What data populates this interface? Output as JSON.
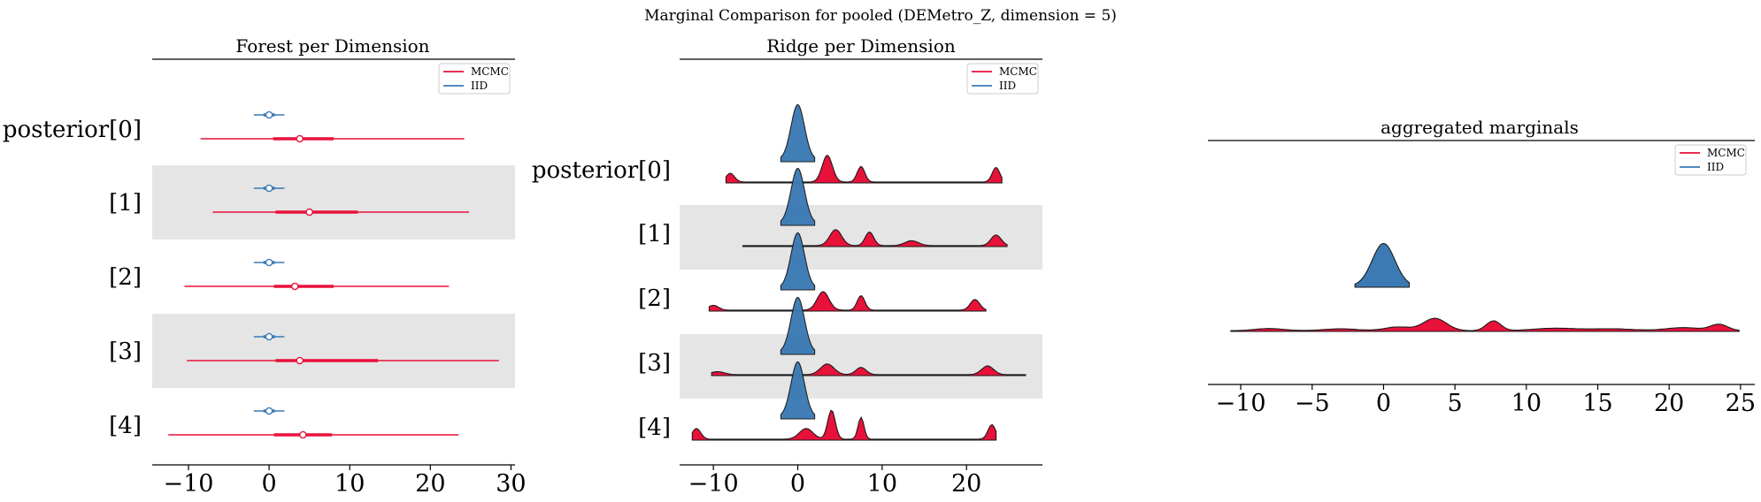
{
  "suptitle": "Marginal Comparison for pooled (DEMetro_Z, dimension = 5)",
  "colors": {
    "mcmc": "#e8113a",
    "mcmc_dark": "#c20a2c",
    "iid": "#3c7ab4",
    "band": "#e5e5e5"
  },
  "legend": [
    "MCMC",
    "IID"
  ],
  "chart_data": [
    {
      "type": "forest",
      "title": "Forest per Dimension",
      "row_labels": [
        "posterior[0]",
        "[1]",
        "[2]",
        "[3]",
        "[4]"
      ],
      "x_ticks": [
        -10,
        0,
        10,
        20,
        30
      ],
      "xlim": [
        -14.5,
        30.5
      ],
      "legend_placement": "top-right",
      "series": [
        {
          "name": "MCMC",
          "rows": [
            {
              "median": 3.8,
              "q25": 0.5,
              "q75": 8.0,
              "low": -8.5,
              "high": 24.2
            },
            {
              "median": 5.0,
              "q25": 0.8,
              "q75": 11.0,
              "low": -7.0,
              "high": 24.8
            },
            {
              "median": 3.2,
              "q25": 0.6,
              "q75": 8.0,
              "low": -10.5,
              "high": 22.3
            },
            {
              "median": 3.8,
              "q25": 0.8,
              "q75": 13.5,
              "low": -10.2,
              "high": 28.5
            },
            {
              "median": 4.2,
              "q25": 0.6,
              "q75": 7.8,
              "low": -12.5,
              "high": 23.5
            }
          ]
        },
        {
          "name": "IID",
          "rows": [
            {
              "median": 0.0,
              "q25": -0.7,
              "q75": 0.7,
              "low": -1.9,
              "high": 1.9
            },
            {
              "median": 0.0,
              "q25": -0.7,
              "q75": 0.7,
              "low": -1.9,
              "high": 1.9
            },
            {
              "median": 0.0,
              "q25": -0.7,
              "q75": 0.7,
              "low": -1.9,
              "high": 1.9
            },
            {
              "median": 0.0,
              "q25": -0.7,
              "q75": 0.7,
              "low": -1.9,
              "high": 1.9
            },
            {
              "median": 0.0,
              "q25": -0.7,
              "q75": 0.7,
              "low": -1.9,
              "high": 1.9
            }
          ]
        }
      ]
    },
    {
      "type": "ridgeline",
      "title": "Ridge per Dimension",
      "row_labels": [
        "posterior[0]",
        "[1]",
        "[2]",
        "[3]",
        "[4]"
      ],
      "x_ticks": [
        -10,
        0,
        10,
        20
      ],
      "xlim": [
        -14,
        29
      ],
      "legend_placement": "top-right",
      "series": [
        {
          "name": "IID",
          "range": [
            -2,
            2
          ],
          "peaks": [
            [
              0,
              1.0,
              0.8
            ]
          ]
        },
        {
          "name": "MCMC",
          "rows": [
            {
              "range": [
                -8.5,
                24.2
              ],
              "peaks": [
                [
                  -8,
                  0.18,
                  0.5
                ],
                [
                  3.5,
                  0.55,
                  0.6
                ],
                [
                  7.5,
                  0.32,
                  0.45
                ],
                [
                  23.5,
                  0.3,
                  0.45
                ]
              ]
            },
            {
              "range": [
                -6.5,
                24.8
              ],
              "peaks": [
                [
                  4.5,
                  0.33,
                  0.7
                ],
                [
                  8.5,
                  0.28,
                  0.5
                ],
                [
                  13.5,
                  0.1,
                  0.8
                ],
                [
                  23.5,
                  0.22,
                  0.6
                ]
              ]
            },
            {
              "range": [
                -10.5,
                22.3
              ],
              "peaks": [
                [
                  -10,
                  0.1,
                  0.6
                ],
                [
                  3,
                  0.38,
                  0.7
                ],
                [
                  7.5,
                  0.3,
                  0.45
                ],
                [
                  21,
                  0.22,
                  0.55
                ]
              ]
            },
            {
              "range": [
                -10.2,
                27.0
              ],
              "peaks": [
                [
                  3.5,
                  0.22,
                  0.8
                ],
                [
                  7.5,
                  0.15,
                  0.6
                ],
                [
                  22.5,
                  0.18,
                  0.7
                ],
                [
                  -9.5,
                  0.06,
                  0.8
                ]
              ]
            },
            {
              "range": [
                -12.5,
                23.5
              ],
              "peaks": [
                [
                  -12,
                  0.22,
                  0.5
                ],
                [
                  1,
                  0.22,
                  0.8
                ],
                [
                  4,
                  0.6,
                  0.45
                ],
                [
                  7.5,
                  0.45,
                  0.35
                ],
                [
                  23,
                  0.3,
                  0.45
                ]
              ]
            }
          ]
        }
      ]
    },
    {
      "type": "area",
      "title": "aggregated marginals",
      "x_ticks": [
        -10,
        -5,
        0,
        5,
        10,
        15,
        20,
        25
      ],
      "xlim": [
        -12.3,
        26
      ],
      "legend_placement": "top-right",
      "series": [
        {
          "name": "IID",
          "range": [
            -2,
            1.8
          ],
          "peaks": [
            [
              0,
              1.0,
              0.8
            ]
          ]
        },
        {
          "name": "MCMC",
          "range": [
            -10.7,
            24.9
          ],
          "peaks": [
            [
              -8,
              0.035,
              1.0
            ],
            [
              -3,
              0.03,
              1.2
            ],
            [
              1,
              0.06,
              0.9
            ],
            [
              3.6,
              0.2,
              0.8
            ],
            [
              7.7,
              0.16,
              0.5
            ],
            [
              12,
              0.04,
              1.5
            ],
            [
              16,
              0.03,
              1.5
            ],
            [
              21,
              0.05,
              1.2
            ],
            [
              23.5,
              0.1,
              0.6
            ]
          ]
        }
      ]
    }
  ]
}
